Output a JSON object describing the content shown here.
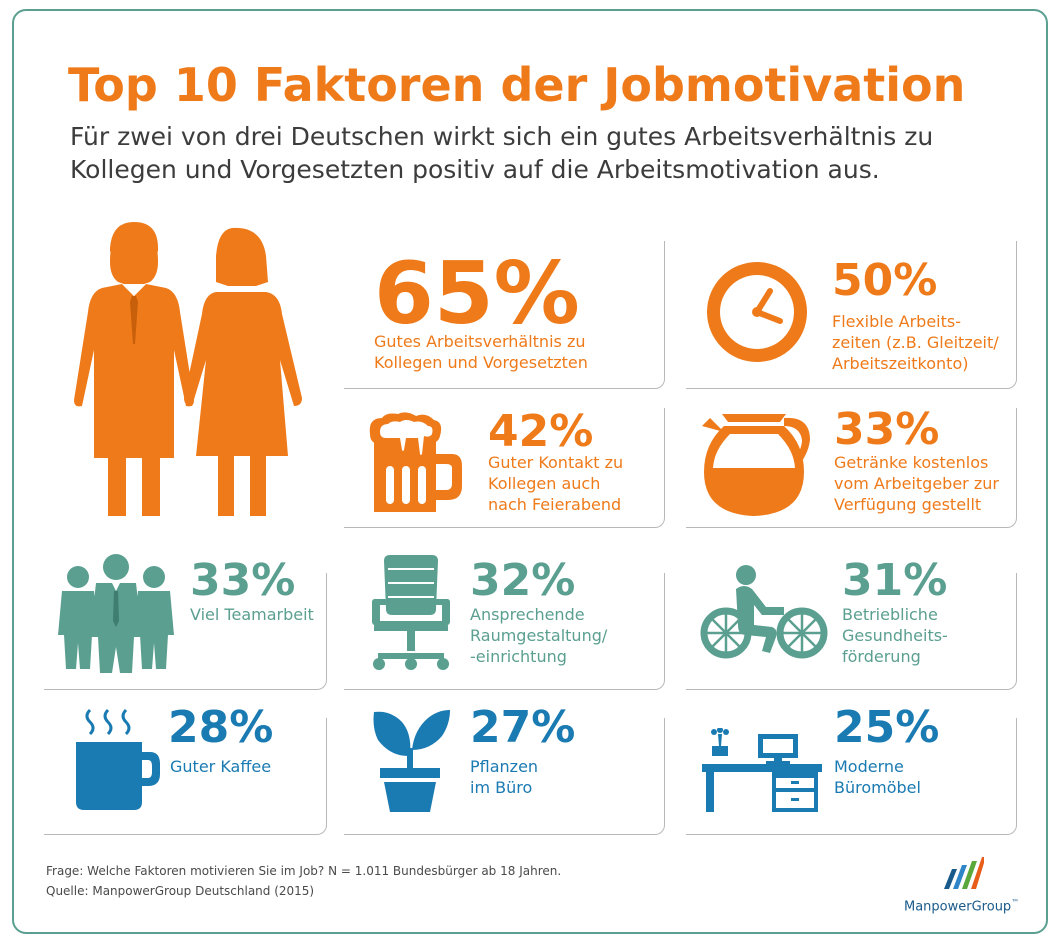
{
  "title": "Top 10 Faktoren der Jobmotivation",
  "subtitle": "Für zwei von drei Deutschen wirkt sich ein gutes Arbeitsverhältnis zu Kollegen und Vorgesetzten positiv auf die Arbeitsmotivation aus.",
  "colors": {
    "orange": "#ef7a1a",
    "green": "#5a9f90",
    "blue": "#1a7ab2",
    "frame": "#5a9f90"
  },
  "chart_data": {
    "type": "table",
    "title": "Top 10 Faktoren der Jobmotivation",
    "categories": [
      "Gutes Arbeitsverhältnis zu Kollegen und Vorgesetzten",
      "Flexible Arbeitszeiten (z.B. Gleitzeit/Arbeitszeitkonto)",
      "Guter Kontakt zu Kollegen auch nach Feierabend",
      "Getränke kostenlos vom Arbeitgeber zur Verfügung gestellt",
      "Viel Teamarbeit",
      "Ansprechende Raumgestaltung/-einrichtung",
      "Betriebliche Gesundheitsförderung",
      "Guter Kaffee",
      "Pflanzen im Büro",
      "Moderne Büromöbel"
    ],
    "values": [
      65,
      50,
      42,
      33,
      33,
      32,
      31,
      28,
      27,
      25
    ],
    "unit": "%"
  },
  "cards": [
    {
      "value": "65%",
      "label": "Gutes Arbeitsverhältnis zu\nKollegen und Vorgesetzten",
      "icon": "business-people-icon",
      "color": "orange"
    },
    {
      "value": "50%",
      "label": "Flexible Arbeits-\nzeiten (z.B. Gleitzeit/\nArbeitszeitkonto)",
      "icon": "clock-icon",
      "color": "orange"
    },
    {
      "value": "42%",
      "label": "Guter Kontakt zu\nKollegen auch\nnach Feierabend",
      "icon": "beer-mug-icon",
      "color": "orange"
    },
    {
      "value": "33%",
      "label": "Getränke kostenlos\nvom Arbeitgeber zur\nVerfügung gestellt",
      "icon": "coffee-pot-icon",
      "color": "orange"
    },
    {
      "value": "33%",
      "label": "Viel Teamarbeit",
      "icon": "team-icon",
      "color": "green"
    },
    {
      "value": "32%",
      "label": "Ansprechende\nRaumgestaltung/\n-einrichtung",
      "icon": "office-chair-icon",
      "color": "green"
    },
    {
      "value": "31%",
      "label": "Betriebliche\nGesundheits-\nförderung",
      "icon": "cyclist-icon",
      "color": "green"
    },
    {
      "value": "28%",
      "label": "Guter Kaffee",
      "icon": "coffee-cup-icon",
      "color": "blue"
    },
    {
      "value": "27%",
      "label": "Pflanzen\nim Büro",
      "icon": "plant-icon",
      "color": "blue"
    },
    {
      "value": "25%",
      "label": "Moderne\nBüromöbel",
      "icon": "desk-icon",
      "color": "blue"
    }
  ],
  "footer": {
    "question": "Frage: Welche Faktoren motivieren Sie im Job? N = 1.011 Bundesbürger ab 18 Jahren.",
    "source": "Quelle: ManpowerGroup Deutschland (2015)"
  },
  "logo": {
    "text": "ManpowerGroup",
    "trademark": "™"
  }
}
